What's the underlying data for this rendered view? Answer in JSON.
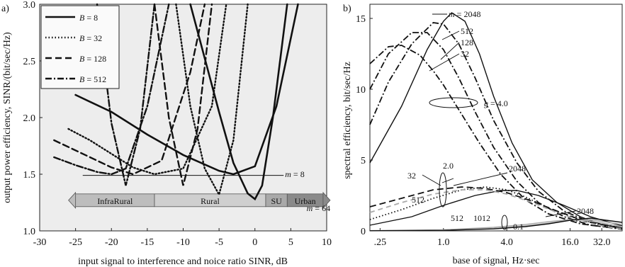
{
  "chart_data": [
    {
      "type": "line",
      "panel_label": "a)",
      "xlabel": "input signal to interference and noice ratio SINR, dB",
      "ylabel": "output power efficiency,  SINR/(bit/sec/Hz)",
      "xlim": [
        -30,
        10
      ],
      "ylim": [
        1.0,
        3.0
      ],
      "x_ticks": [
        "-30",
        "-25",
        "-20",
        "-15",
        "-10",
        "-5",
        "0",
        "5",
        "10"
      ],
      "y_ticks": [
        "1.0",
        "1.5",
        "2.0",
        "2.5",
        "3.0"
      ],
      "grid": false,
      "legend_position": "top-left",
      "legend": [
        {
          "label": "B = 8",
          "style": "solid"
        },
        {
          "label": "B = 32",
          "style": "dotted"
        },
        {
          "label": "B = 128",
          "style": "dashed"
        },
        {
          "label": "B = 512",
          "style": "dashdot"
        }
      ],
      "series": [
        {
          "name": "B = 8",
          "style": "solid",
          "m": "8",
          "x": [
            -25,
            -20,
            -15,
            -10,
            -5,
            -3,
            0,
            3,
            6
          ],
          "y": [
            2.2,
            2.05,
            1.85,
            1.67,
            1.53,
            1.5,
            1.57,
            2.1,
            3.0
          ]
        },
        {
          "name": "B = 8",
          "style": "solid",
          "m": "64",
          "x": [
            -9,
            -5,
            -3,
            -1,
            0,
            1,
            2.5,
            4.5
          ],
          "y": [
            3.0,
            2.05,
            1.6,
            1.33,
            1.28,
            1.4,
            2.0,
            3.0
          ]
        },
        {
          "name": "B = 32",
          "style": "dotted",
          "m": "8",
          "x": [
            -26,
            -23,
            -20,
            -17,
            -14,
            -10,
            -6,
            -4
          ],
          "y": [
            1.9,
            1.8,
            1.68,
            1.56,
            1.5,
            1.55,
            2.1,
            3.0
          ]
        },
        {
          "name": "B = 32",
          "style": "dotted",
          "m": "64",
          "x": [
            -11,
            -9,
            -7,
            -5,
            -3,
            -1
          ],
          "y": [
            3.0,
            2.1,
            1.55,
            1.32,
            1.8,
            3.0
          ]
        },
        {
          "name": "B = 128",
          "style": "dashed",
          "m": "8",
          "x": [
            -28,
            -24,
            -20,
            -17,
            -13,
            -9,
            -7
          ],
          "y": [
            1.8,
            1.68,
            1.56,
            1.5,
            1.62,
            2.4,
            3.0
          ]
        },
        {
          "name": "B = 128",
          "style": "dashed",
          "m": "64",
          "x": [
            -14,
            -12,
            -10,
            -8,
            -6
          ],
          "y": [
            3.0,
            2.0,
            1.4,
            1.9,
            3.0
          ]
        },
        {
          "name": "B = 512",
          "style": "dashdot",
          "m": "8",
          "x": [
            -28,
            -25,
            -22,
            -20,
            -18,
            -15,
            -12
          ],
          "y": [
            1.65,
            1.58,
            1.52,
            1.5,
            1.55,
            2.1,
            3.0
          ]
        },
        {
          "name": "B = 512",
          "style": "dashdot",
          "m": "64",
          "x": [
            -22,
            -20,
            -18,
            -16,
            -14
          ],
          "y": [
            3.0,
            1.95,
            1.4,
            1.9,
            3.0
          ]
        }
      ],
      "annotations": [
        {
          "text": "m = 8",
          "x": 4,
          "y": 1.5
        },
        {
          "text": "m = 64",
          "x": 7,
          "y": 1.2
        }
      ],
      "reference_line": {
        "y": 1.49,
        "x_from": -24,
        "x_to": 4
      },
      "regions": [
        {
          "label": "InfraRural",
          "x_from": -25,
          "x_to": -14
        },
        {
          "label": "Rural",
          "x_from": -14,
          "x_to": 1.5
        },
        {
          "label": "SU",
          "x_from": 1.5,
          "x_to": 4.5
        },
        {
          "label": "Urban",
          "x_from": 4.5,
          "x_to": 9.5
        }
      ],
      "region_bar_y": 1.27
    },
    {
      "type": "line",
      "panel_label": "b)",
      "xlabel": "base of signal,   Hz·sec",
      "ylabel": "spectral efficiency,   bit/sec/Hz",
      "x_ticks": [
        {
          "label": ".25",
          "value": 0.25
        },
        {
          "label": "1.0",
          "value": 1.0
        },
        {
          "label": "4.0",
          "value": 4.0
        },
        {
          "label": "16.0",
          "value": 16.0
        },
        {
          "label": "32.0",
          "value": 32.0
        }
      ],
      "xscale": "log",
      "xlim": [
        0.2,
        50
      ],
      "ylim": [
        0,
        16
      ],
      "y_ticks": [
        "0",
        "5",
        "10",
        "15"
      ],
      "grid": false,
      "series": [
        {
          "g": "4.0",
          "m": "2048",
          "style": "solid",
          "x": [
            0.2,
            0.4,
            0.7,
            1.0,
            1.2,
            1.6,
            2.2,
            3.0,
            4.5,
            7,
            12,
            20,
            32,
            50
          ],
          "y": [
            4.8,
            8.8,
            12.8,
            14.8,
            15.4,
            14.8,
            12.5,
            9.5,
            6.2,
            3.6,
            2.0,
            1.0,
            0.45,
            0.2
          ]
        },
        {
          "g": "4.0",
          "m": "512",
          "style": "dashdot",
          "x": [
            0.2,
            0.3,
            0.5,
            0.8,
            1.0,
            1.4,
            2.0,
            3.0,
            5,
            8,
            14,
            25,
            50
          ],
          "y": [
            7.5,
            10.5,
            13.2,
            14.7,
            14.6,
            13.2,
            10.8,
            7.8,
            4.8,
            2.8,
            1.4,
            0.6,
            0.2
          ]
        },
        {
          "g": "4.0",
          "m": "128",
          "style": "dashdot",
          "x": [
            0.2,
            0.3,
            0.5,
            0.7,
            1.0,
            1.4,
            2.0,
            3.0,
            5,
            8,
            14,
            25,
            50
          ],
          "y": [
            10.0,
            12.5,
            14.0,
            14.0,
            12.8,
            10.8,
            8.4,
            5.9,
            3.5,
            2.0,
            1.0,
            0.4,
            0.15
          ]
        },
        {
          "g": "4.0",
          "m": "32",
          "style": "dashdot",
          "x": [
            0.2,
            0.3,
            0.4,
            0.6,
            0.8,
            1.0,
            1.5,
            2.2,
            3.5,
            6,
            10,
            20,
            50
          ],
          "y": [
            11.8,
            13.0,
            13.1,
            12.4,
            11.3,
            10.3,
            8.2,
            6.2,
            4.0,
            2.2,
            1.2,
            0.5,
            0.12
          ]
        },
        {
          "g": "2.0",
          "m": "2048",
          "style": "solid",
          "x": [
            0.2,
            0.5,
            1.0,
            2.0,
            3.5,
            5,
            8,
            14,
            25,
            50
          ],
          "y": [
            0.4,
            1.0,
            1.8,
            2.5,
            2.85,
            2.85,
            2.5,
            1.8,
            1.0,
            0.35
          ]
        },
        {
          "g": "2.0",
          "m": "512",
          "style": "dotted",
          "x": [
            0.2,
            0.4,
            0.8,
            1.5,
            2.5,
            4,
            6,
            10,
            18,
            30,
            50
          ],
          "y": [
            0.8,
            1.5,
            2.3,
            2.9,
            3.1,
            2.9,
            2.4,
            1.6,
            0.9,
            0.45,
            0.2
          ]
        },
        {
          "g": "2.0",
          "m": "32",
          "style": "dashed",
          "x": [
            0.2,
            0.4,
            0.8,
            1.5,
            2.5,
            4,
            7,
            12,
            20,
            35,
            50
          ],
          "y": [
            1.7,
            2.3,
            2.9,
            3.1,
            3.0,
            2.7,
            2.1,
            1.4,
            0.8,
            0.35,
            0.2
          ]
        },
        {
          "g": "2.0",
          "m": "128",
          "style": "dashed-gray",
          "x": [
            0.2,
            0.4,
            0.8,
            1.5,
            2.5,
            4,
            7,
            12,
            20,
            35,
            50
          ],
          "y": [
            1.3,
            2.0,
            2.6,
            2.9,
            2.9,
            2.6,
            2.0,
            1.3,
            0.7,
            0.3,
            0.15
          ]
        },
        {
          "g": "0.1",
          "m": "512",
          "style": "solid-gray",
          "x": [
            0.2,
            1,
            3,
            6,
            10,
            16,
            25,
            50
          ],
          "y": [
            0.02,
            0.08,
            0.25,
            0.45,
            0.65,
            0.8,
            0.7,
            0.3
          ]
        },
        {
          "g": "0.1",
          "m": "1012",
          "style": "solid-gray",
          "x": [
            0.2,
            1,
            3,
            6,
            10,
            16,
            25,
            50
          ],
          "y": [
            0.01,
            0.05,
            0.18,
            0.35,
            0.55,
            0.75,
            0.8,
            0.45
          ]
        },
        {
          "g": "0.1",
          "m": "2048",
          "style": "solid",
          "x": [
            0.2,
            1,
            3,
            6,
            10,
            16,
            25,
            50
          ],
          "y": [
            0.01,
            0.04,
            0.14,
            0.3,
            0.5,
            0.75,
            0.9,
            0.6
          ]
        }
      ],
      "annotations": [
        {
          "text": "m = 2048",
          "group": "g4"
        },
        {
          "text": "512",
          "group": "g4"
        },
        {
          "text": "128",
          "group": "g4"
        },
        {
          "text": "32",
          "group": "g4"
        },
        {
          "text": "g = 4.0",
          "group": "g4"
        },
        {
          "text": "2.0",
          "group": "g2"
        },
        {
          "text": "32",
          "group": "g2"
        },
        {
          "text": "2048",
          "group": "g2"
        },
        {
          "text": "512",
          "group": "g2"
        },
        {
          "text": "512",
          "group": "g01"
        },
        {
          "text": "1012",
          "group": "g01"
        },
        {
          "text": "2048",
          "group": "g01"
        },
        {
          "text": "0.1",
          "group": "g01"
        }
      ]
    }
  ]
}
